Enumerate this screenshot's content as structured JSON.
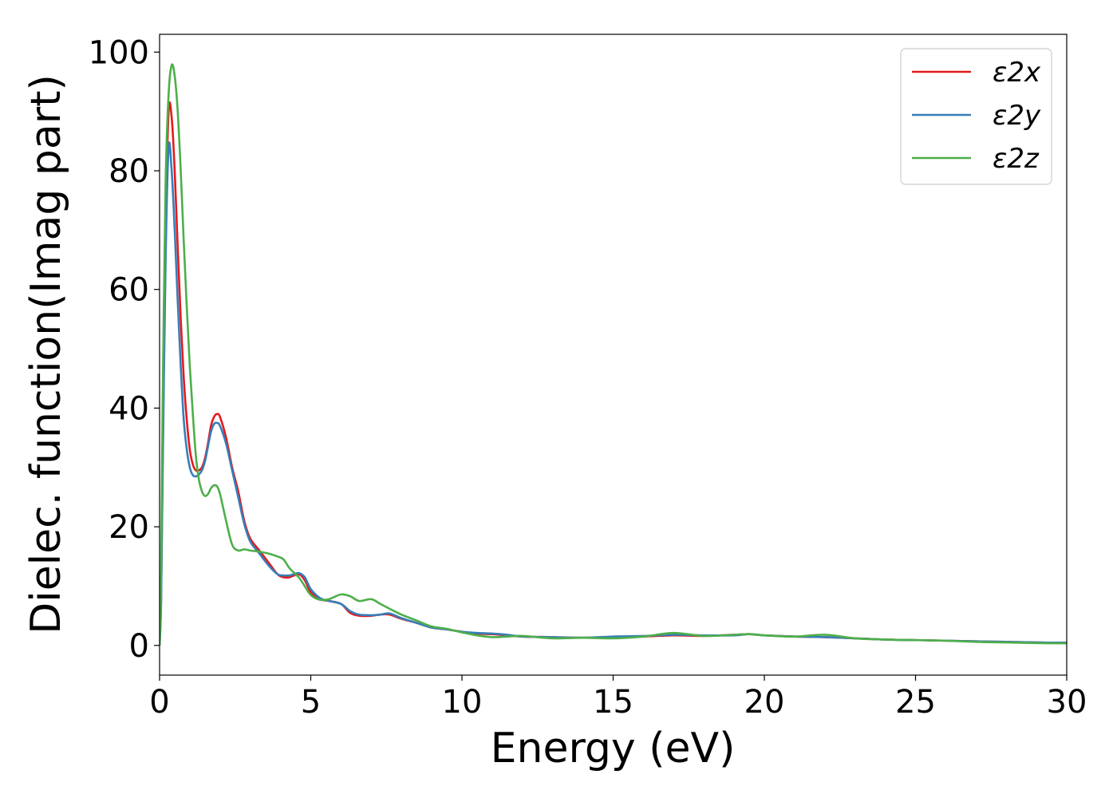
{
  "chart_data": {
    "type": "line",
    "xlabel": "Energy (eV)",
    "ylabel": "Dielec. function(Imag part)",
    "xlim": [
      0,
      30
    ],
    "ylim": [
      -5,
      103
    ],
    "xticks": [
      0,
      5,
      10,
      15,
      20,
      25,
      30
    ],
    "yticks": [
      0,
      20,
      40,
      60,
      80,
      100
    ],
    "grid": false,
    "legend_position": "top-right",
    "series": [
      {
        "name": "ε2x",
        "color": "#e41a1c",
        "x": [
          0,
          0.05,
          0.1,
          0.2,
          0.3,
          0.4,
          0.5,
          0.6,
          0.7,
          0.8,
          0.9,
          1.0,
          1.1,
          1.2,
          1.3,
          1.4,
          1.5,
          1.6,
          1.7,
          1.8,
          1.9,
          2.0,
          2.2,
          2.4,
          2.6,
          2.8,
          3.0,
          3.3,
          3.6,
          3.9,
          4.1,
          4.3,
          4.6,
          4.8,
          5.0,
          5.3,
          5.6,
          6.0,
          6.3,
          6.6,
          7.0,
          7.3,
          7.6,
          8.0,
          8.5,
          9.0,
          9.5,
          10.0,
          10.5,
          11.0,
          11.5,
          12.0,
          13.0,
          14.0,
          15.0,
          16.0,
          17.0,
          18.0,
          19.0,
          19.5,
          20.0,
          21.0,
          22.0,
          23.0,
          24.0,
          25.0,
          26.0,
          27.0,
          28.0,
          29.0,
          30.0
        ],
        "values": [
          0,
          8,
          30,
          70,
          90,
          89,
          80,
          67,
          55,
          45,
          38,
          33,
          30.5,
          29.5,
          29.5,
          30,
          31.5,
          34,
          37,
          38.5,
          39,
          38.5,
          35,
          30,
          26,
          21,
          18,
          16,
          14,
          12,
          11.5,
          11.5,
          12,
          11,
          9,
          7.8,
          7.5,
          7,
          5.5,
          5,
          5,
          5.2,
          5.2,
          4.5,
          3.8,
          3,
          2.7,
          2.3,
          2,
          1.9,
          1.7,
          1.5,
          1.4,
          1.3,
          1.4,
          1.5,
          1.7,
          1.6,
          1.8,
          1.9,
          1.7,
          1.5,
          1.4,
          1.2,
          1,
          0.9,
          0.8,
          0.7,
          0.6,
          0.5,
          0.45
        ]
      },
      {
        "name": "ε2y",
        "color": "#377eb8",
        "x": [
          0,
          0.05,
          0.1,
          0.2,
          0.3,
          0.4,
          0.5,
          0.6,
          0.7,
          0.8,
          0.9,
          1.0,
          1.1,
          1.2,
          1.3,
          1.4,
          1.5,
          1.6,
          1.7,
          1.8,
          1.9,
          2.0,
          2.2,
          2.4,
          2.6,
          2.8,
          3.0,
          3.3,
          3.6,
          3.9,
          4.1,
          4.3,
          4.6,
          4.8,
          5.0,
          5.3,
          5.6,
          6.0,
          6.3,
          6.6,
          7.0,
          7.3,
          7.6,
          8.0,
          8.5,
          9.0,
          9.5,
          10.0,
          10.5,
          11.0,
          11.5,
          12.0,
          13.0,
          14.0,
          15.0,
          16.0,
          17.0,
          18.0,
          19.0,
          19.5,
          20.0,
          21.0,
          22.0,
          23.0,
          24.0,
          25.0,
          26.0,
          27.0,
          28.0,
          29.0,
          30.0
        ],
        "values": [
          0,
          7,
          28,
          65,
          84,
          80,
          70,
          58,
          47,
          38,
          33,
          30,
          28.7,
          28.5,
          28.8,
          29.5,
          31,
          33.5,
          36,
          37.3,
          37.5,
          37,
          34,
          29.5,
          25,
          20.5,
          17.5,
          15.5,
          13.5,
          12,
          11.8,
          11.8,
          12.2,
          11.5,
          9.5,
          8,
          7.5,
          7,
          5.8,
          5.2,
          5.1,
          5.2,
          5.4,
          4.6,
          3.8,
          3,
          2.7,
          2.3,
          2.1,
          2,
          1.8,
          1.5,
          1.4,
          1.3,
          1.5,
          1.6,
          1.8,
          1.7,
          1.7,
          1.9,
          1.7,
          1.5,
          1.4,
          1.2,
          1,
          0.9,
          0.8,
          0.7,
          0.6,
          0.5,
          0.45
        ]
      },
      {
        "name": "ε2z",
        "color": "#4daf4a",
        "x": [
          0,
          0.05,
          0.1,
          0.2,
          0.3,
          0.4,
          0.5,
          0.6,
          0.7,
          0.8,
          0.9,
          1.0,
          1.1,
          1.2,
          1.3,
          1.4,
          1.5,
          1.6,
          1.7,
          1.8,
          1.9,
          2.0,
          2.2,
          2.4,
          2.6,
          2.8,
          3.0,
          3.3,
          3.6,
          3.9,
          4.1,
          4.3,
          4.6,
          4.8,
          5.0,
          5.3,
          5.6,
          6.0,
          6.3,
          6.6,
          7.0,
          7.3,
          7.6,
          8.0,
          8.5,
          9.0,
          9.5,
          10.0,
          10.5,
          11.0,
          11.5,
          12.0,
          13.0,
          14.0,
          15.0,
          16.0,
          17.0,
          18.0,
          19.0,
          19.5,
          20.0,
          21.0,
          22.0,
          23.0,
          24.0,
          25.0,
          26.0,
          27.0,
          28.0,
          29.0,
          30.0
        ],
        "values": [
          0,
          12,
          40,
          78,
          93,
          97.8,
          96,
          90,
          80,
          68,
          57,
          47,
          39,
          32,
          28,
          26,
          25.2,
          25.5,
          26.5,
          27,
          26.8,
          25.5,
          21,
          17,
          16,
          16.2,
          16,
          15.8,
          15.5,
          15,
          14.5,
          13,
          11.5,
          10,
          8.5,
          7.7,
          7.8,
          8.6,
          8.3,
          7.5,
          7.8,
          7,
          6.2,
          5.2,
          4.2,
          3.2,
          2.8,
          2.2,
          1.7,
          1.4,
          1.5,
          1.6,
          1.2,
          1.3,
          1.2,
          1.5,
          2.1,
          1.6,
          1.8,
          1.9,
          1.7,
          1.5,
          1.8,
          1.2,
          1,
          0.9,
          0.8,
          0.6,
          0.5,
          0.4,
          0.35
        ]
      }
    ]
  }
}
